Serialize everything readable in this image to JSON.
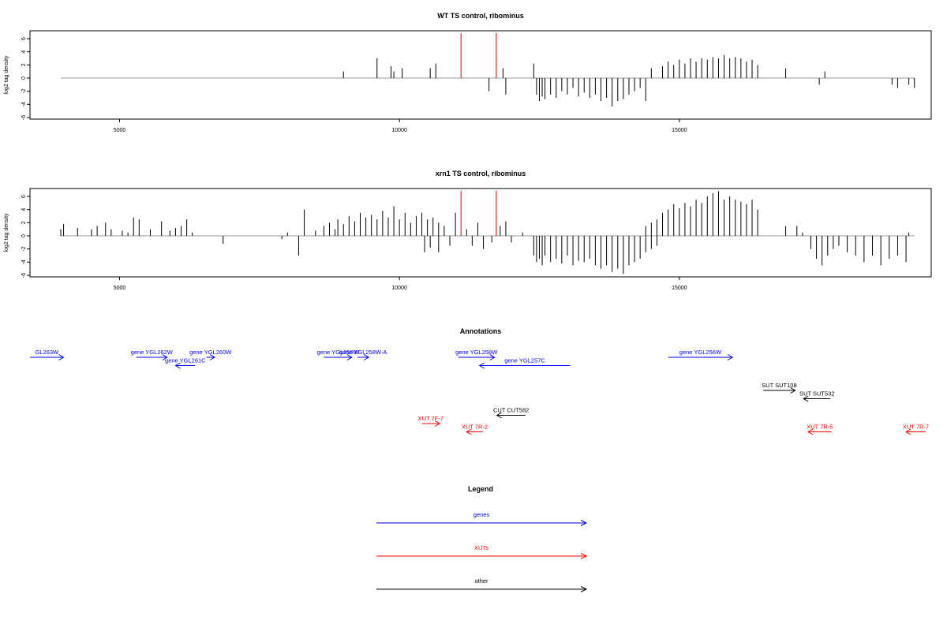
{
  "colors": {
    "bars": "#000000",
    "marker": "#cc0000",
    "baseline": "#999999",
    "gene": "#0000ff",
    "xut": "#ff0000",
    "other": "#000000"
  },
  "chart_data": [
    {
      "type": "bar",
      "title": "WT TS control, ribominus",
      "ylabel": "log2 tag density",
      "xlim": [
        3400,
        19500
      ],
      "ylim": [
        -6,
        7
      ],
      "xticks": [
        5000,
        10000,
        15000
      ],
      "yticks": [
        6,
        4,
        2,
        0,
        -2,
        -4,
        -6
      ],
      "markers": [
        11100,
        11730
      ],
      "bars": [
        [
          9000,
          1.0
        ],
        [
          9600,
          3.0
        ],
        [
          9850,
          1.8
        ],
        [
          9900,
          1.0
        ],
        [
          10050,
          1.5
        ],
        [
          10550,
          1.5
        ],
        [
          10650,
          2.2
        ],
        [
          11600,
          -2.0
        ],
        [
          11850,
          1.5
        ],
        [
          11900,
          -2.5
        ],
        [
          12400,
          2.2
        ],
        [
          12450,
          -2.5
        ],
        [
          12500,
          -3.5
        ],
        [
          12550,
          -2.8
        ],
        [
          12600,
          -3.2
        ],
        [
          12700,
          -2.5
        ],
        [
          12800,
          -3.0
        ],
        [
          12900,
          -2.0
        ],
        [
          13000,
          -2.5
        ],
        [
          13100,
          -1.5
        ],
        [
          13200,
          -2.8
        ],
        [
          13300,
          -2.2
        ],
        [
          13400,
          -3.0
        ],
        [
          13500,
          -2.5
        ],
        [
          13600,
          -3.5
        ],
        [
          13700,
          -3.0
        ],
        [
          13800,
          -4.3
        ],
        [
          13900,
          -3.5
        ],
        [
          14000,
          -3.2
        ],
        [
          14100,
          -2.5
        ],
        [
          14200,
          -2.0
        ],
        [
          14300,
          -1.5
        ],
        [
          14400,
          -3.5
        ],
        [
          14500,
          1.5
        ],
        [
          14700,
          1.8
        ],
        [
          14800,
          2.5
        ],
        [
          14900,
          2.0
        ],
        [
          15000,
          2.8
        ],
        [
          15100,
          2.2
        ],
        [
          15200,
          3.0
        ],
        [
          15300,
          2.5
        ],
        [
          15400,
          3.0
        ],
        [
          15500,
          2.8
        ],
        [
          15600,
          3.2
        ],
        [
          15700,
          3.0
        ],
        [
          15800,
          3.5
        ],
        [
          15900,
          3.0
        ],
        [
          16000,
          3.2
        ],
        [
          16100,
          3.0
        ],
        [
          16200,
          2.5
        ],
        [
          16300,
          2.8
        ],
        [
          16400,
          2.0
        ],
        [
          16900,
          1.5
        ],
        [
          17500,
          -1.0
        ],
        [
          17600,
          1.0
        ],
        [
          18800,
          -1.0
        ],
        [
          18900,
          -1.5
        ],
        [
          19100,
          -1.0
        ],
        [
          19200,
          -1.5
        ]
      ]
    },
    {
      "type": "bar",
      "title": "xrn1 TS control, ribominus",
      "ylabel": "log2 tag density",
      "xlim": [
        3400,
        19500
      ],
      "ylim": [
        -6,
        7
      ],
      "xticks": [
        5000,
        10000,
        15000
      ],
      "yticks": [
        6,
        4,
        2,
        0,
        -2,
        -4,
        -6
      ],
      "markers": [
        11100,
        11730
      ],
      "bars": [
        [
          3950,
          1.0
        ],
        [
          4000,
          1.8
        ],
        [
          4250,
          1.2
        ],
        [
          4500,
          1.0
        ],
        [
          4600,
          1.5
        ],
        [
          4750,
          2.0
        ],
        [
          4850,
          1.0
        ],
        [
          5050,
          0.8
        ],
        [
          5150,
          0.5
        ],
        [
          5250,
          2.8
        ],
        [
          5350,
          2.5
        ],
        [
          5550,
          1.0
        ],
        [
          5750,
          2.2
        ],
        [
          5900,
          0.8
        ],
        [
          6000,
          1.2
        ],
        [
          6100,
          1.5
        ],
        [
          6200,
          2.5
        ],
        [
          6300,
          0.5
        ],
        [
          6850,
          -1.2
        ],
        [
          7900,
          -0.5
        ],
        [
          8000,
          0.5
        ],
        [
          8200,
          -3.0
        ],
        [
          8300,
          4.0
        ],
        [
          8500,
          0.8
        ],
        [
          8650,
          1.5
        ],
        [
          8750,
          2.0
        ],
        [
          8850,
          1.0
        ],
        [
          8900,
          2.5
        ],
        [
          9000,
          1.8
        ],
        [
          9100,
          3.0
        ],
        [
          9200,
          2.2
        ],
        [
          9300,
          3.5
        ],
        [
          9400,
          2.8
        ],
        [
          9500,
          3.2
        ],
        [
          9600,
          2.5
        ],
        [
          9700,
          3.8
        ],
        [
          9800,
          2.8
        ],
        [
          9900,
          4.5
        ],
        [
          10000,
          2.5
        ],
        [
          10100,
          3.5
        ],
        [
          10200,
          2.0
        ],
        [
          10300,
          3.0
        ],
        [
          10400,
          3.5
        ],
        [
          10500,
          2.5
        ],
        [
          10600,
          2.8
        ],
        [
          10700,
          2.0
        ],
        [
          10800,
          1.5
        ],
        [
          10450,
          -2.5
        ],
        [
          10550,
          -1.8
        ],
        [
          10700,
          -2.5
        ],
        [
          10900,
          -1.5
        ],
        [
          11000,
          3.5
        ],
        [
          11200,
          1.0
        ],
        [
          11300,
          -1.5
        ],
        [
          11400,
          2.0
        ],
        [
          11500,
          -2.0
        ],
        [
          11650,
          -1.0
        ],
        [
          11800,
          1.5
        ],
        [
          11900,
          2.2
        ],
        [
          12000,
          -1.0
        ],
        [
          12200,
          0.5
        ],
        [
          12400,
          -3.0
        ],
        [
          12450,
          -4.0
        ],
        [
          12500,
          -3.5
        ],
        [
          12550,
          -4.5
        ],
        [
          12600,
          -3.0
        ],
        [
          12700,
          -4.0
        ],
        [
          12800,
          -3.5
        ],
        [
          12900,
          -4.2
        ],
        [
          13000,
          -3.0
        ],
        [
          13100,
          -4.5
        ],
        [
          13200,
          -3.8
        ],
        [
          13300,
          -4.0
        ],
        [
          13400,
          -3.5
        ],
        [
          13500,
          -4.5
        ],
        [
          13600,
          -5.0
        ],
        [
          13700,
          -4.5
        ],
        [
          13800,
          -5.5
        ],
        [
          13900,
          -5.0
        ],
        [
          14000,
          -5.8
        ],
        [
          14100,
          -4.5
        ],
        [
          14200,
          -4.0
        ],
        [
          14300,
          -3.5
        ],
        [
          14400,
          -2.5
        ],
        [
          14500,
          -2.0
        ],
        [
          14600,
          -1.5
        ],
        [
          14400,
          1.5
        ],
        [
          14500,
          2.0
        ],
        [
          14600,
          2.5
        ],
        [
          14700,
          3.5
        ],
        [
          14800,
          4.0
        ],
        [
          14900,
          4.8
        ],
        [
          15000,
          4.2
        ],
        [
          15100,
          5.0
        ],
        [
          15200,
          4.5
        ],
        [
          15300,
          5.5
        ],
        [
          15400,
          5.0
        ],
        [
          15500,
          6.0
        ],
        [
          15600,
          6.5
        ],
        [
          15700,
          6.8
        ],
        [
          15800,
          5.5
        ],
        [
          15900,
          6.0
        ],
        [
          16000,
          5.5
        ],
        [
          16100,
          5.2
        ],
        [
          16200,
          4.8
        ],
        [
          16300,
          5.5
        ],
        [
          16400,
          4.0
        ],
        [
          16900,
          1.5
        ],
        [
          17100,
          1.5
        ],
        [
          17200,
          0.5
        ],
        [
          17350,
          -2.0
        ],
        [
          17450,
          -3.5
        ],
        [
          17550,
          -4.5
        ],
        [
          17650,
          -3.0
        ],
        [
          17750,
          -2.0
        ],
        [
          17850,
          -1.5
        ],
        [
          18000,
          -2.5
        ],
        [
          18150,
          -3.0
        ],
        [
          18300,
          -4.0
        ],
        [
          18450,
          -3.0
        ],
        [
          18600,
          -4.5
        ],
        [
          18750,
          -3.5
        ],
        [
          18900,
          -3.0
        ],
        [
          19050,
          -4.0
        ],
        [
          19100,
          0.5
        ]
      ]
    }
  ],
  "annotations": {
    "title": "Annotations",
    "features": [
      {
        "label": "GL263W",
        "start": 3400,
        "end": 4000,
        "row": 0,
        "kind": "gene"
      },
      {
        "label": "gene YGL262W",
        "start": 5300,
        "end": 5850,
        "row": 0,
        "kind": "gene"
      },
      {
        "label": "gene YGL260W",
        "start": 6550,
        "end": 6700,
        "row": 0,
        "kind": "gene"
      },
      {
        "label": "gene YGL261C",
        "start": 6350,
        "end": 6000,
        "row": 1,
        "kind": "gene"
      },
      {
        "label": "gene YGL259W",
        "start": 8650,
        "end": 9150,
        "row": 0,
        "kind": "gene"
      },
      {
        "label": "gene YGL258W-A",
        "start": 9250,
        "end": 9450,
        "row": 0,
        "kind": "gene"
      },
      {
        "label": "gene YGL258W",
        "start": 11050,
        "end": 11700,
        "row": 0,
        "kind": "gene"
      },
      {
        "label": "gene YGL257C",
        "start": 13050,
        "end": 11430,
        "row": 1,
        "kind": "gene"
      },
      {
        "label": "gene YGL256W",
        "start": 14800,
        "end": 15950,
        "row": 0,
        "kind": "gene"
      },
      {
        "label": "SUT SUT108",
        "start": 16500,
        "end": 17070,
        "row": 4,
        "kind": "other"
      },
      {
        "label": "SUT SUT532",
        "start": 17700,
        "end": 17220,
        "row": 5,
        "kind": "other"
      },
      {
        "label": "CUT CUT582",
        "start": 12250,
        "end": 11740,
        "row": 7,
        "kind": "other"
      },
      {
        "label": "XUT 7F-7",
        "start": 10400,
        "end": 10720,
        "row": 8,
        "kind": "xut"
      },
      {
        "label": "XUT 7R-2",
        "start": 11490,
        "end": 11200,
        "row": 9,
        "kind": "xut"
      },
      {
        "label": "XUT 7R-5",
        "start": 17720,
        "end": 17300,
        "row": 9,
        "kind": "xut"
      },
      {
        "label": "XUT 7R-7",
        "start": 19400,
        "end": 19050,
        "row": 9,
        "kind": "xut"
      }
    ]
  },
  "legend": {
    "title": "Legend",
    "items": [
      {
        "label": "genes",
        "kind": "gene"
      },
      {
        "label": "XUTs",
        "kind": "xut"
      },
      {
        "label": "other",
        "kind": "other"
      }
    ]
  }
}
